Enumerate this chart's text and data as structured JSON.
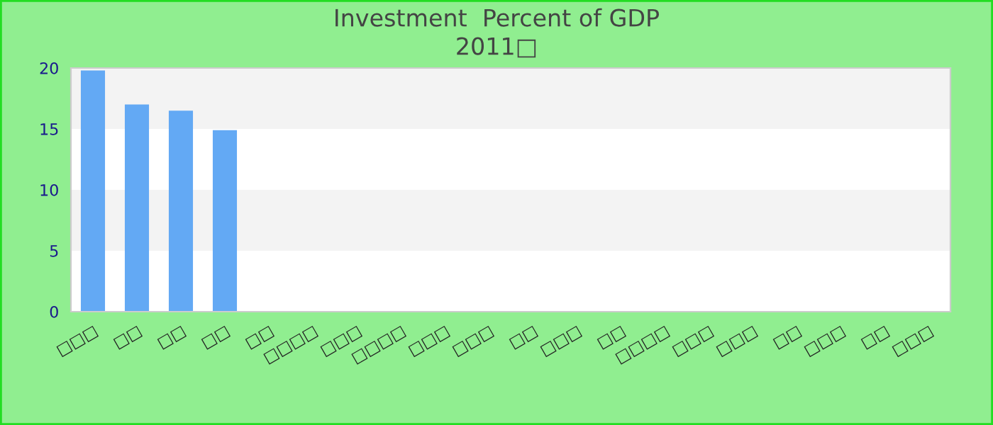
{
  "chart_data": {
    "type": "bar",
    "title": "Investment  Percent of GDP",
    "subtitle": "2011□",
    "categories": [
      "□□□",
      "□□",
      "□□",
      "□□",
      "□□",
      "□□□□",
      "□□□",
      "□□□□",
      "□□□",
      "□□□",
      "□□",
      "□□□",
      "□□",
      "□□□□",
      "□□□",
      "□□□",
      "□□",
      "□□□",
      "□□",
      "□□□"
    ],
    "values": [
      19.8,
      17.0,
      16.5,
      14.9,
      null,
      null,
      null,
      null,
      null,
      null,
      null,
      null,
      null,
      null,
      null,
      null,
      null,
      null,
      null,
      null
    ],
    "color": "#63a9f4",
    "ylim": [
      0,
      20
    ],
    "yticks": [
      0,
      5,
      10,
      15,
      20
    ],
    "bands": [
      {
        "axis": "y",
        "from": 5,
        "to": 10,
        "color": "#f3f3f3"
      },
      {
        "axis": "y",
        "from": 15,
        "to": 20,
        "color": "#f3f3f3"
      }
    ]
  }
}
